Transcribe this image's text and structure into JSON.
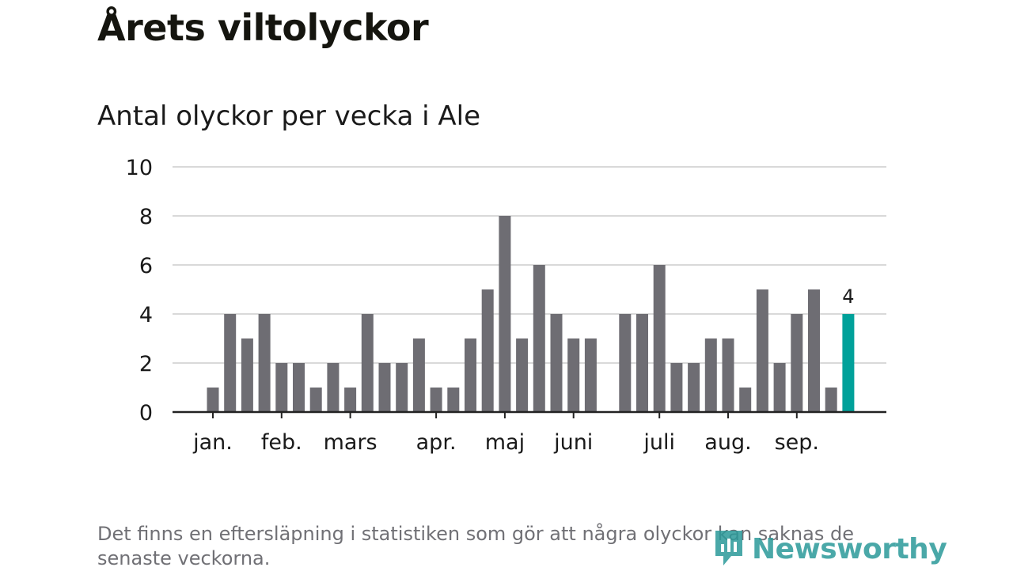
{
  "title": "Årets viltolyckor",
  "subtitle": "Antal olyckor per vecka i Ale",
  "footnote": "Det finns en eftersläpning i statistiken som gör att några olyckor kan saknas de senaste veckorna.",
  "brand": {
    "name": "Newsworthy",
    "color": "#2b9a9a"
  },
  "colors": {
    "bar": "#6e6d73",
    "highlight": "#00a19a",
    "grid": "#d9d9d9",
    "axis": "#222222"
  },
  "chart_data": {
    "type": "bar",
    "values": [
      1,
      4,
      3,
      4,
      2,
      2,
      1,
      2,
      1,
      4,
      2,
      2,
      3,
      1,
      1,
      3,
      5,
      8,
      3,
      6,
      4,
      3,
      3,
      null,
      4,
      4,
      6,
      2,
      2,
      3,
      3,
      1,
      5,
      2,
      4,
      5,
      1,
      4
    ],
    "highlight_index": 37,
    "highlight_label": "4",
    "ylim": [
      0,
      10
    ],
    "yticks": [
      0,
      2,
      4,
      6,
      8,
      10
    ],
    "month_labels": [
      {
        "label": "jan.",
        "bar_index": 0
      },
      {
        "label": "feb.",
        "bar_index": 4
      },
      {
        "label": "mars",
        "bar_index": 8
      },
      {
        "label": "apr.",
        "bar_index": 13
      },
      {
        "label": "maj",
        "bar_index": 17
      },
      {
        "label": "juni",
        "bar_index": 21
      },
      {
        "label": "juli",
        "bar_index": 26
      },
      {
        "label": "aug.",
        "bar_index": 30
      },
      {
        "label": "sep.",
        "bar_index": 34
      }
    ],
    "grid": true,
    "xlabel": "",
    "ylabel": ""
  }
}
